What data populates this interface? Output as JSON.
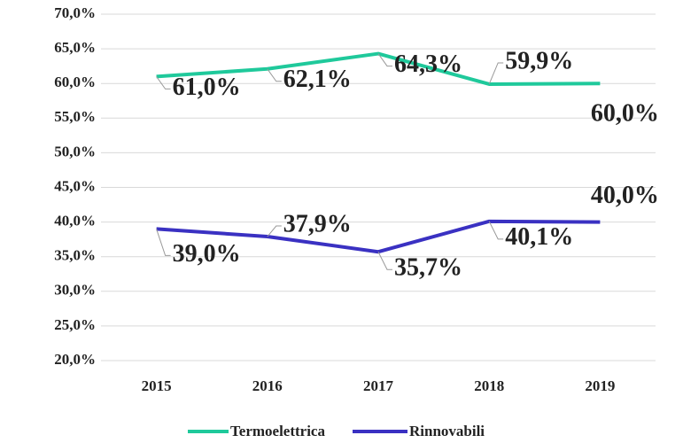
{
  "chart_data": {
    "type": "line",
    "categories": [
      "2015",
      "2016",
      "2017",
      "2018",
      "2019"
    ],
    "series": [
      {
        "name": "Termoelettrica",
        "color": "#1fc99b",
        "values": [
          61.0,
          62.1,
          64.3,
          59.9,
          60.0
        ],
        "value_labels": [
          "61,0%",
          "62,1%",
          "64,3%",
          "59,9%",
          "60,0%"
        ]
      },
      {
        "name": "Rinnovabili",
        "color": "#3a31c2",
        "values": [
          39.0,
          37.9,
          35.7,
          40.1,
          40.0
        ],
        "value_labels": [
          "39,0%",
          "37,9%",
          "35,7%",
          "40,1%",
          "40,0%"
        ]
      }
    ],
    "ylim": [
      20,
      70
    ],
    "yticks": [
      {
        "value": 20,
        "label": "20,0%"
      },
      {
        "value": 25,
        "label": "25,0%"
      },
      {
        "value": 30,
        "label": "30,0%"
      },
      {
        "value": 35,
        "label": "35,0%"
      },
      {
        "value": 40,
        "label": "40,0%"
      },
      {
        "value": 45,
        "label": "45,0%"
      },
      {
        "value": 50,
        "label": "50,0%"
      },
      {
        "value": 55,
        "label": "55,0%"
      },
      {
        "value": 60,
        "label": "60,0%"
      },
      {
        "value": 65,
        "label": "65,0%"
      },
      {
        "value": 70,
        "label": "70,0%"
      }
    ],
    "grid": true,
    "legend": "bottom"
  }
}
